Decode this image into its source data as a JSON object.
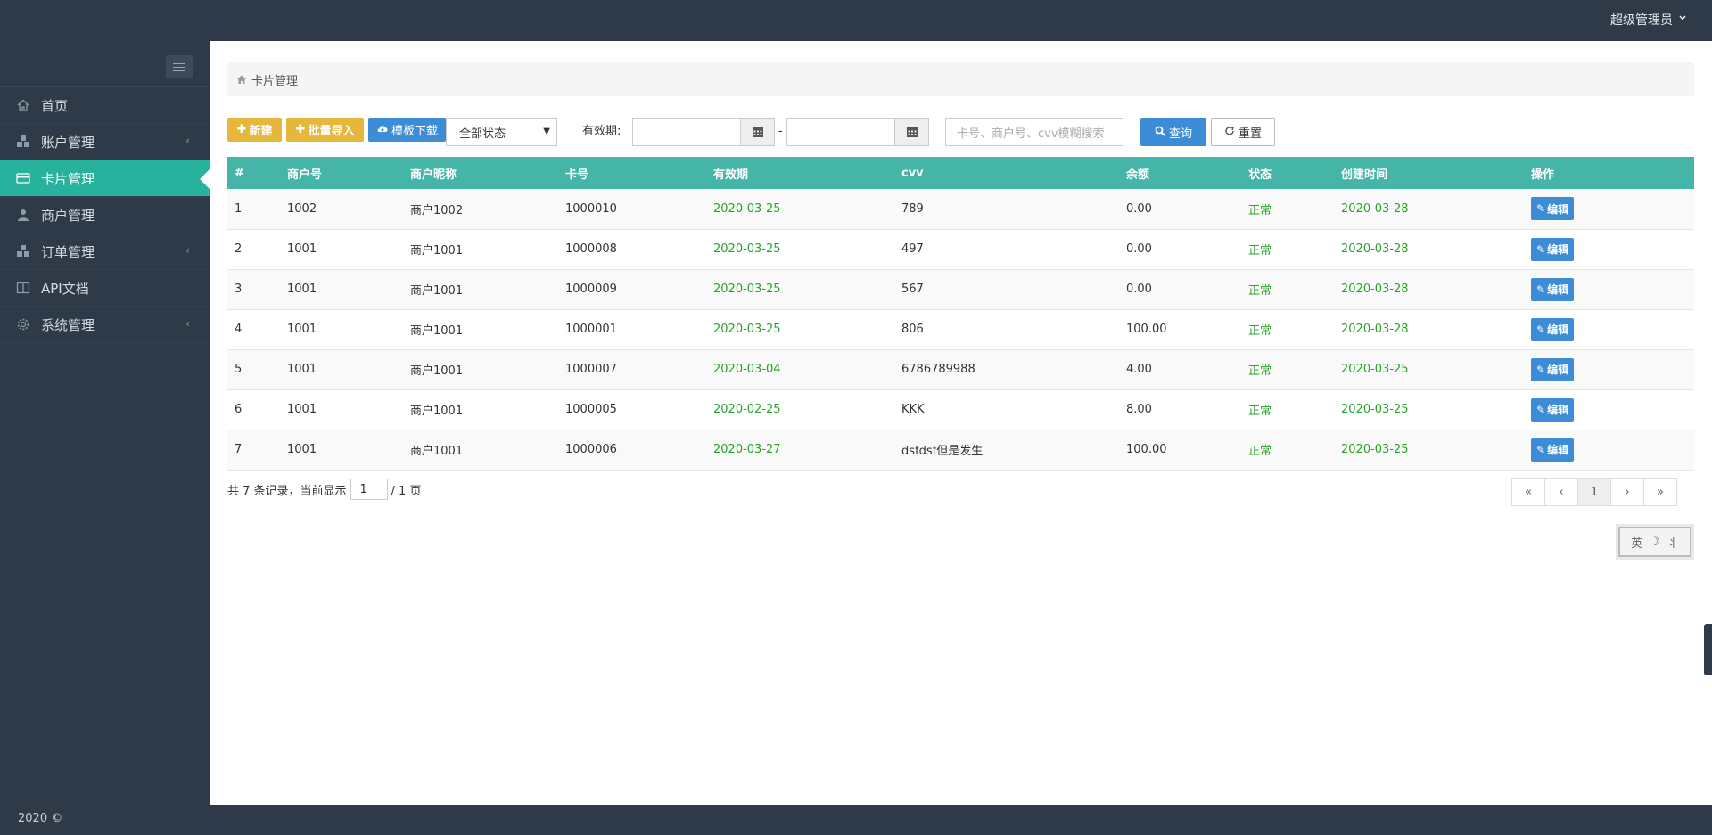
{
  "header": {
    "user_label": "超级管理员",
    "user_chevron": "chevron-down-icon"
  },
  "sidebar": {
    "toggle_icon": "hamburger-icon",
    "items": [
      {
        "label": "首页",
        "icon": "home-icon",
        "has_arrow": false
      },
      {
        "label": "账户管理",
        "icon": "cubes-icon",
        "has_arrow": true
      },
      {
        "label": "卡片管理",
        "icon": "credit-card-icon",
        "has_arrow": false,
        "active": true
      },
      {
        "label": "商户管理",
        "icon": "user-icon",
        "has_arrow": false
      },
      {
        "label": "订单管理",
        "icon": "cubes-icon",
        "has_arrow": true
      },
      {
        "label": "API文档",
        "icon": "columns-icon",
        "has_arrow": false
      },
      {
        "label": "系统管理",
        "icon": "gear-icon",
        "has_arrow": true
      }
    ],
    "arrow_glyph": "‹"
  },
  "breadcrumb": {
    "label": "卡片管理"
  },
  "toolbar": {
    "new_label": "新建",
    "import_label": "批量导入",
    "template_label": "模板下载",
    "status_value": "全部状态",
    "expiry_label": "有效期:",
    "date_separator": "-",
    "search_placeholder": "卡号、商户号、cvv模糊搜索",
    "query_label": "查询",
    "reset_label": "重置"
  },
  "table": {
    "columns": [
      "#",
      "商户号",
      "商户昵称",
      "卡号",
      "有效期",
      "cvv",
      "余额",
      "状态",
      "创建时间",
      "操作"
    ],
    "edit_label": "编辑",
    "rows": [
      {
        "no": "1",
        "merchant_id": "1002",
        "merchant_name": "商户1002",
        "card_no": "1000010",
        "expiry": "2020-03-25",
        "cvv": "789",
        "balance": "0.00",
        "status": "正常",
        "created": "2020-03-28"
      },
      {
        "no": "2",
        "merchant_id": "1001",
        "merchant_name": "商户1001",
        "card_no": "1000008",
        "expiry": "2020-03-25",
        "cvv": "497",
        "balance": "0.00",
        "status": "正常",
        "created": "2020-03-28"
      },
      {
        "no": "3",
        "merchant_id": "1001",
        "merchant_name": "商户1001",
        "card_no": "1000009",
        "expiry": "2020-03-25",
        "cvv": "567",
        "balance": "0.00",
        "status": "正常",
        "created": "2020-03-28"
      },
      {
        "no": "4",
        "merchant_id": "1001",
        "merchant_name": "商户1001",
        "card_no": "1000001",
        "expiry": "2020-03-25",
        "cvv": "806",
        "balance": "100.00",
        "status": "正常",
        "created": "2020-03-28"
      },
      {
        "no": "5",
        "merchant_id": "1001",
        "merchant_name": "商户1001",
        "card_no": "1000007",
        "expiry": "2020-03-04",
        "cvv": "6786789988",
        "balance": "4.00",
        "status": "正常",
        "created": "2020-03-25"
      },
      {
        "no": "6",
        "merchant_id": "1001",
        "merchant_name": "商户1001",
        "card_no": "1000005",
        "expiry": "2020-02-25",
        "cvv": "KKK",
        "balance": "8.00",
        "status": "正常",
        "created": "2020-03-25"
      },
      {
        "no": "7",
        "merchant_id": "1001",
        "merchant_name": "商户1001",
        "card_no": "1000006",
        "expiry": "2020-03-27",
        "cvv": "dsfdsf但是发生",
        "balance": "100.00",
        "status": "正常",
        "created": "2020-03-25"
      }
    ]
  },
  "pagination": {
    "prefix": "共 7 条记录，当前显示",
    "current_page": "1",
    "suffix": "/ 1 页",
    "buttons": [
      "«",
      "‹",
      "1",
      "›",
      "»"
    ]
  },
  "ime": {
    "lang": "英",
    "moon": "☽",
    "width": "⺦"
  },
  "footer": {
    "text": "2020 ©"
  },
  "colors": {
    "sidebar_bg": "#2e3a47",
    "active": "#26b29c",
    "table_header": "#44b5a7",
    "yellow_btn": "#e5b73b",
    "blue_btn": "#3c8dd6",
    "green_text": "#2aa22a"
  }
}
